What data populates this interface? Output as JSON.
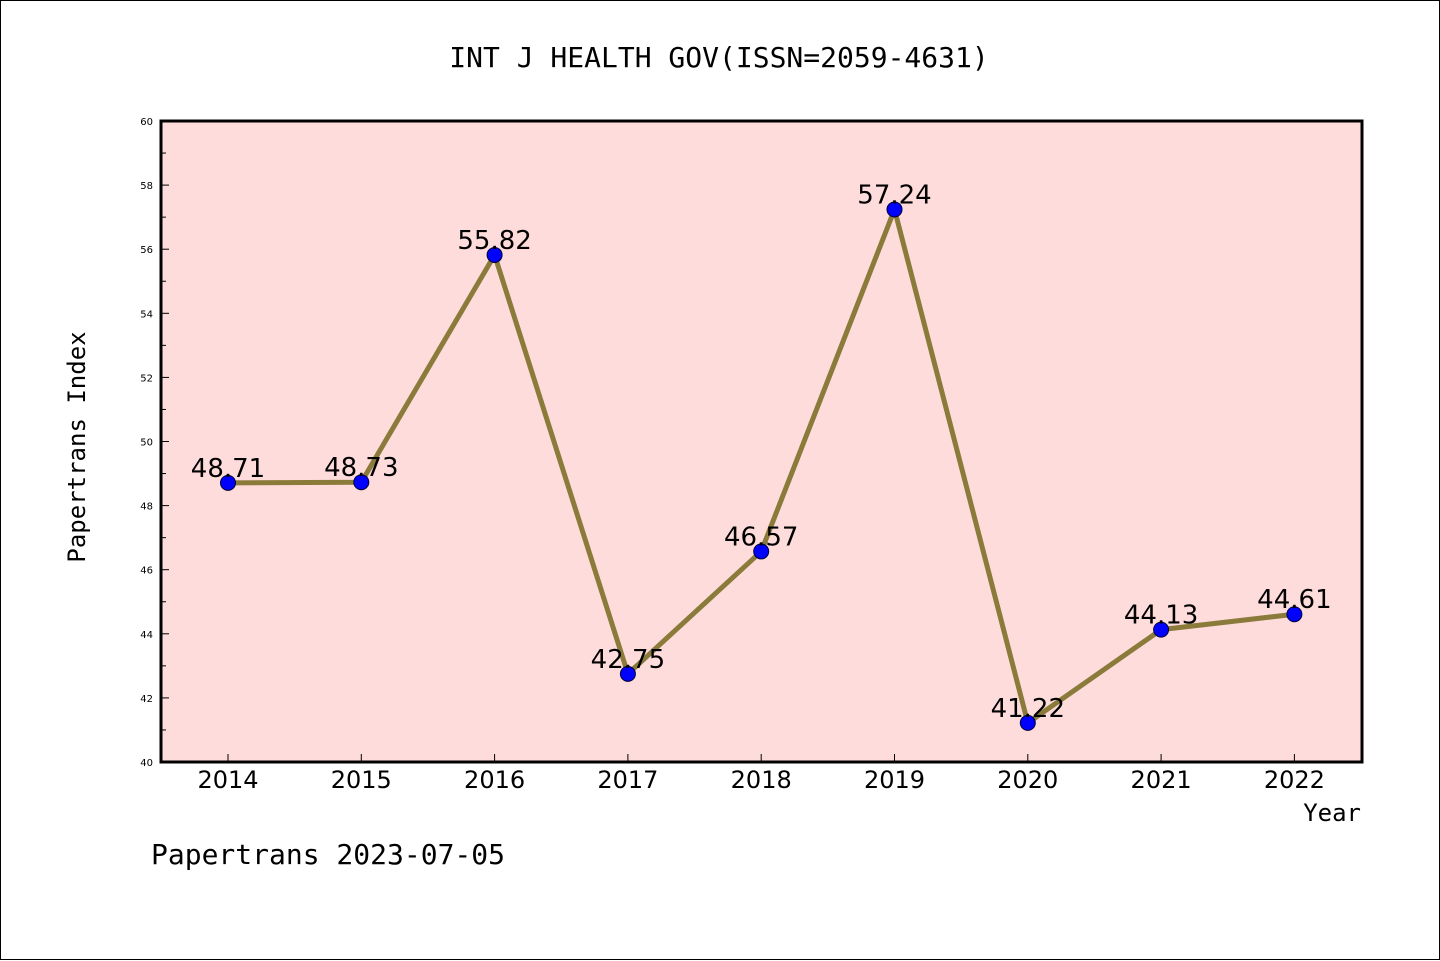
{
  "chart_data": {
    "type": "line",
    "title": "INT J HEALTH GOV(ISSN=2059-4631)",
    "xlabel": "Year",
    "ylabel": "Papertrans Index",
    "categories": [
      "2014",
      "2015",
      "2016",
      "2017",
      "2018",
      "2019",
      "2020",
      "2021",
      "2022"
    ],
    "series": [
      {
        "values": [
          48.71,
          48.73,
          55.82,
          42.75,
          46.57,
          57.24,
          41.22,
          44.13,
          44.61
        ],
        "labels": [
          "48.71",
          "48.73",
          "55.82",
          "42.75",
          "46.57",
          "57.24",
          "41.22",
          "44.13",
          "44.61"
        ],
        "line_color": "#8b7b3a",
        "marker_color": "#0000ff"
      }
    ],
    "ylim": [
      40,
      60
    ],
    "yticks": [
      "40",
      "42",
      "44",
      "46",
      "48",
      "50",
      "52",
      "54",
      "56",
      "58",
      "60"
    ],
    "plot_background": "#ffdcdc",
    "grid": false,
    "legend": "none"
  },
  "footer": "Papertrans 2023-07-05"
}
